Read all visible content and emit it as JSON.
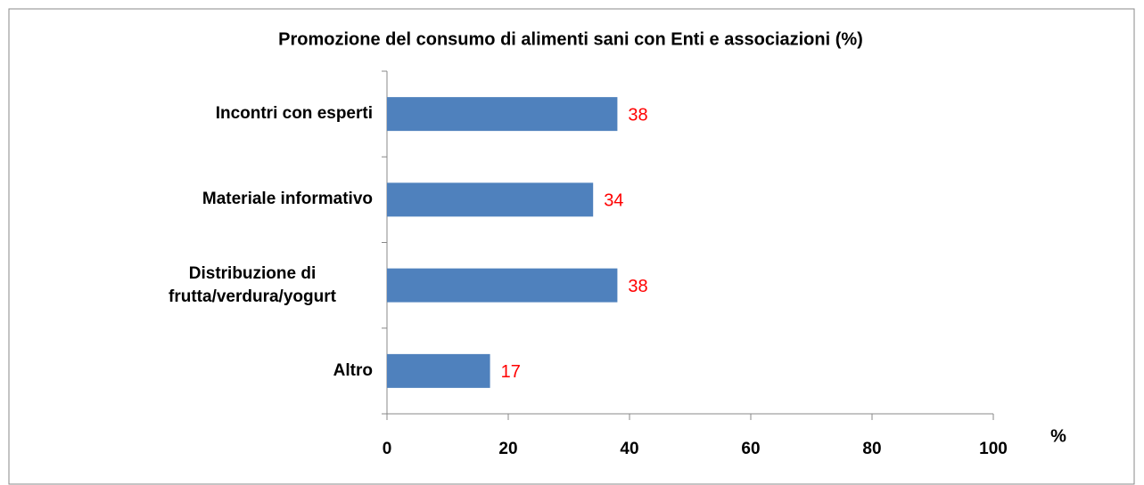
{
  "chart_data": {
    "type": "bar",
    "orientation": "horizontal",
    "title": "Promozione del consumo di alimenti sani con Enti e associazioni (%)",
    "categories": [
      "Incontri con esperti",
      "Materiale informativo",
      "Distribuzione di frutta/verdura/yogurt",
      "Altro"
    ],
    "values": [
      38,
      34,
      38,
      17
    ],
    "color": "#4f81bd",
    "value_label_color": "#ff0000",
    "xlabel": "%",
    "xlim": [
      0,
      100
    ],
    "xticks": [
      0,
      20,
      40,
      60,
      80,
      100
    ],
    "grid": false
  }
}
